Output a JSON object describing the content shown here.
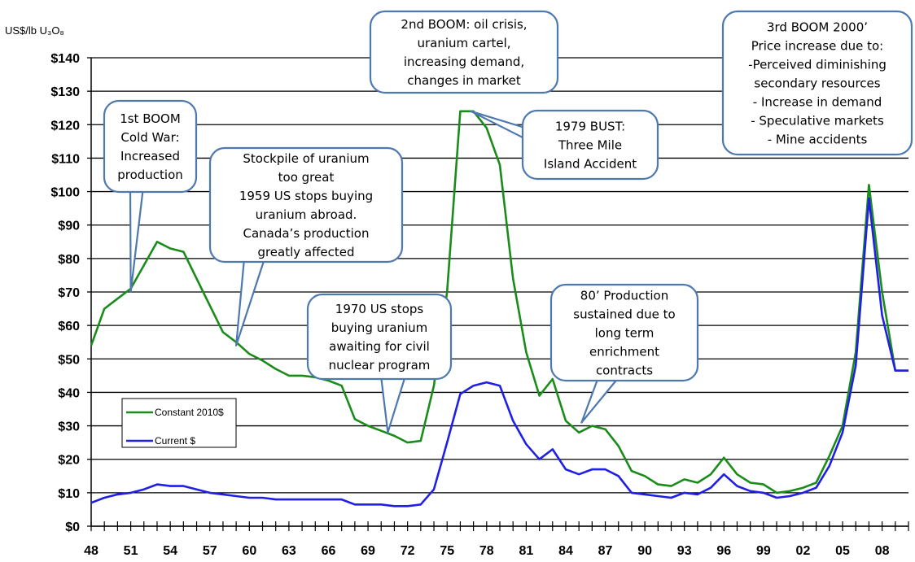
{
  "chart_data": {
    "type": "line",
    "ylabel": "US$/lb U₃O₈",
    "ylim": [
      0,
      140
    ],
    "y_ticks": [
      0,
      10,
      20,
      30,
      40,
      50,
      60,
      70,
      80,
      90,
      100,
      110,
      120,
      130,
      140
    ],
    "y_tick_labels": [
      "$0",
      "$10",
      "$20",
      "$30",
      "$40",
      "$50",
      "$60",
      "$70",
      "$80",
      "$90",
      "$100",
      "$110",
      "$120",
      "$130",
      "$140"
    ],
    "xlim": [
      1948,
      2010
    ],
    "x_ticks": [
      1948,
      1951,
      1954,
      1957,
      1960,
      1963,
      1966,
      1969,
      1972,
      1975,
      1978,
      1981,
      1984,
      1987,
      1990,
      1993,
      1996,
      1999,
      2002,
      2005,
      2008
    ],
    "x_tick_labels": [
      "48",
      "51",
      "54",
      "57",
      "60",
      "63",
      "66",
      "69",
      "72",
      "75",
      "78",
      "81",
      "84",
      "87",
      "90",
      "93",
      "96",
      "99",
      "02",
      "05",
      "08"
    ],
    "grid": "horizontal",
    "legend_position": "lower-left",
    "series": [
      {
        "name": "Constant 2010$",
        "color": "#1a8c1a",
        "x": [
          1948,
          1949,
          1950,
          1951,
          1952,
          1953,
          1954,
          1955,
          1956,
          1957,
          1958,
          1959,
          1960,
          1961,
          1962,
          1963,
          1964,
          1965,
          1966,
          1967,
          1968,
          1969,
          1970,
          1971,
          1972,
          1973,
          1974,
          1975,
          1976,
          1977,
          1978,
          1979,
          1980,
          1981,
          1982,
          1983,
          1984,
          1985,
          1986,
          1987,
          1988,
          1989,
          1990,
          1991,
          1992,
          1993,
          1994,
          1995,
          1996,
          1997,
          1998,
          1999,
          2000,
          2001,
          2002,
          2003,
          2004,
          2005,
          2006,
          2007,
          2008,
          2009,
          2010
        ],
        "values": [
          54,
          65,
          68,
          71,
          78,
          85,
          83,
          82,
          74,
          66,
          58,
          55,
          51.5,
          49.5,
          47,
          45,
          45,
          44.5,
          43.5,
          42,
          32,
          30,
          28.5,
          27,
          25,
          25.5,
          42,
          70,
          124,
          124,
          119,
          108,
          74,
          52,
          39,
          44,
          31.5,
          28,
          30,
          29,
          24,
          16.5,
          15,
          12.5,
          12,
          14,
          13,
          15.5,
          20.5,
          15.5,
          13,
          12.5,
          10,
          10.5,
          11.5,
          13,
          21,
          30,
          52,
          102,
          70,
          46.5,
          46.5
        ]
      },
      {
        "name": "Current $",
        "color": "#1f1fe6",
        "x": [
          1948,
          1949,
          1950,
          1951,
          1952,
          1953,
          1954,
          1955,
          1956,
          1957,
          1958,
          1959,
          1960,
          1961,
          1962,
          1963,
          1964,
          1965,
          1966,
          1967,
          1968,
          1969,
          1970,
          1971,
          1972,
          1973,
          1974,
          1975,
          1976,
          1977,
          1978,
          1979,
          1980,
          1981,
          1982,
          1983,
          1984,
          1985,
          1986,
          1987,
          1988,
          1989,
          1990,
          1991,
          1992,
          1993,
          1994,
          1995,
          1996,
          1997,
          1998,
          1999,
          2000,
          2001,
          2002,
          2003,
          2004,
          2005,
          2006,
          2007,
          2008,
          2009,
          2010
        ],
        "values": [
          7,
          8.5,
          9.5,
          10,
          11,
          12.5,
          12,
          12,
          11,
          10,
          9.5,
          9,
          8.5,
          8.5,
          8,
          8,
          8,
          8,
          8,
          8,
          6.5,
          6.5,
          6.5,
          6,
          6,
          6.5,
          11,
          25,
          39.5,
          42,
          43,
          42,
          31.5,
          24.5,
          20,
          23,
          17,
          15.5,
          17,
          17,
          15,
          10,
          9.5,
          9,
          8.5,
          10,
          9.5,
          11.5,
          15.5,
          12,
          10.5,
          10,
          8.5,
          9,
          10,
          11.5,
          18,
          28,
          48,
          98,
          63,
          46.5,
          46.5
        ]
      }
    ],
    "annotations": [
      {
        "id": "boom1",
        "lines": [
          "1st BOOM",
          "Cold War:",
          "Increased",
          "production"
        ],
        "target": [
          1951,
          70
        ]
      },
      {
        "id": "stockpile",
        "lines": [
          "Stockpile of uranium",
          "too great",
          "1959 US stops buying",
          "uranium abroad.",
          "Canada’s production",
          "greatly affected"
        ],
        "target": [
          1959,
          54
        ]
      },
      {
        "id": "us1970",
        "lines": [
          "1970 US stops",
          "buying uranium",
          "awaiting for civil",
          "nuclear program"
        ],
        "target": [
          1970.5,
          28
        ]
      },
      {
        "id": "boom2",
        "lines": [
          "2nd BOOM: oil crisis,",
          "uranium cartel,",
          "increasing demand,",
          "changes in market"
        ],
        "target": null
      },
      {
        "id": "bust1979",
        "lines": [
          "1979 BUST:",
          "Three Mile",
          "Island Accident"
        ],
        "target": [
          1976.8,
          124
        ]
      },
      {
        "id": "prod80",
        "lines": [
          "80’ Production",
          "sustained due to",
          "long term",
          "enrichment",
          "contracts"
        ],
        "target": [
          1985.2,
          31
        ]
      },
      {
        "id": "boom3",
        "lines": [
          "3rd BOOM 2000’",
          "Price increase due to:",
          "-Perceived diminishing",
          "secondary resources",
          "- Increase in demand",
          "- Speculative markets",
          "- Mine accidents"
        ],
        "target": null
      }
    ]
  }
}
